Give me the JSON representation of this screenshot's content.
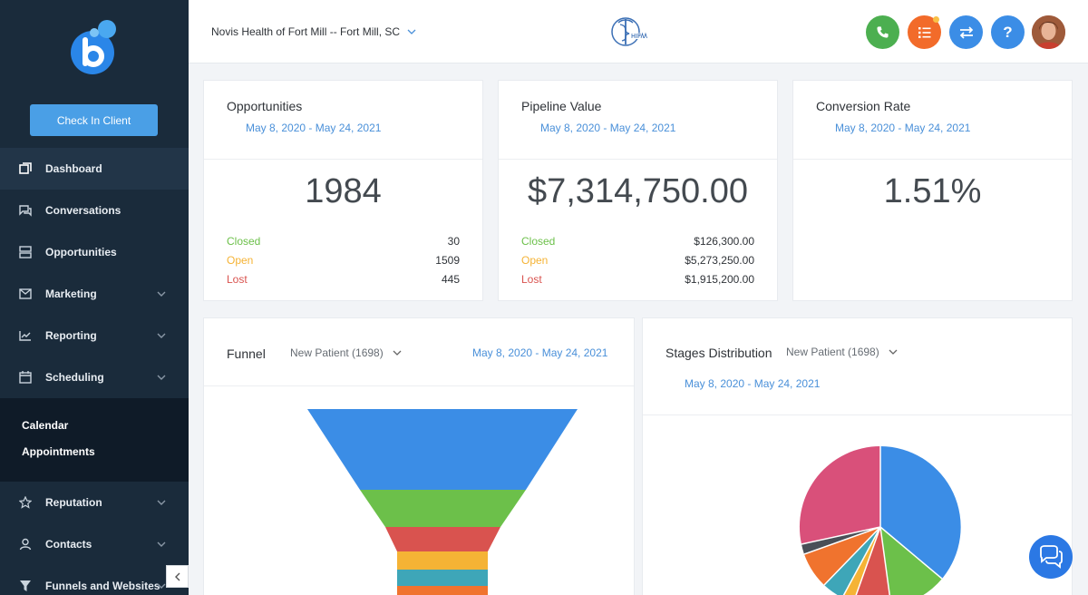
{
  "sidebar": {
    "check_in_label": "Check In Client",
    "items": [
      {
        "label": "Dashboard",
        "icon": "dashboard-icon",
        "active": true
      },
      {
        "label": "Conversations",
        "icon": "chat-icon"
      },
      {
        "label": "Opportunities",
        "icon": "stack-icon"
      },
      {
        "label": "Marketing",
        "icon": "mail-icon",
        "expandable": true
      },
      {
        "label": "Reporting",
        "icon": "chart-icon",
        "expandable": true
      },
      {
        "label": "Scheduling",
        "icon": "calendar-icon",
        "expandable": true
      }
    ],
    "subitems": [
      "Calendar",
      "Appointments"
    ],
    "items_after": [
      {
        "label": "Reputation",
        "icon": "star-icon",
        "expandable": true
      },
      {
        "label": "Contacts",
        "icon": "user-icon",
        "expandable": true
      },
      {
        "label": "Funnels and Websites",
        "icon": "funnel-icon",
        "expandable": true
      }
    ]
  },
  "header": {
    "location": "Novis Health of Fort Mill -- Fort Mill, SC",
    "buttons": [
      {
        "name": "phone-button",
        "color": "#4caf50",
        "icon": "phone-icon"
      },
      {
        "name": "tasks-button",
        "color": "#f26b2a",
        "icon": "list-icon"
      },
      {
        "name": "switch-button",
        "color": "#3b8de6",
        "icon": "swap-icon"
      },
      {
        "name": "help-button",
        "color": "#3b8de6",
        "icon": "question-icon",
        "label": "?"
      }
    ]
  },
  "cards": {
    "opportunities": {
      "title": "Opportunities",
      "date": "May 8, 2020 - May 24, 2021",
      "value": "1984",
      "rows": [
        {
          "label": "Closed",
          "value": "30"
        },
        {
          "label": "Open",
          "value": "1509"
        },
        {
          "label": "Lost",
          "value": "445"
        }
      ]
    },
    "pipeline": {
      "title": "Pipeline Value",
      "date": "May 8, 2020 - May 24, 2021",
      "value": "$7,314,750.00",
      "rows": [
        {
          "label": "Closed",
          "value": "$126,300.00"
        },
        {
          "label": "Open",
          "value": "$5,273,250.00"
        },
        {
          "label": "Lost",
          "value": "$1,915,200.00"
        }
      ]
    },
    "conversion": {
      "title": "Conversion Rate",
      "date": "May 8, 2020 - May 24, 2021",
      "value": "1.51%"
    }
  },
  "funnel": {
    "title": "Funnel",
    "pipeline": "New Patient (1698)",
    "date": "May 8, 2020 - May 24, 2021",
    "colors": [
      "#3b8de6",
      "#6cc04a",
      "#d9534f",
      "#f5b335",
      "#3ea6b8",
      "#f0732e"
    ]
  },
  "stages": {
    "title": "Stages Distribution",
    "pipeline": "New Patient (1698)",
    "date": "May 8, 2020 - May 24, 2021",
    "colors": [
      "#3b8de6",
      "#6cc04a",
      "#d9534f",
      "#f5b335",
      "#3ea6b8",
      "#f0732e",
      "#4a4f57",
      "#d9507a"
    ]
  }
}
